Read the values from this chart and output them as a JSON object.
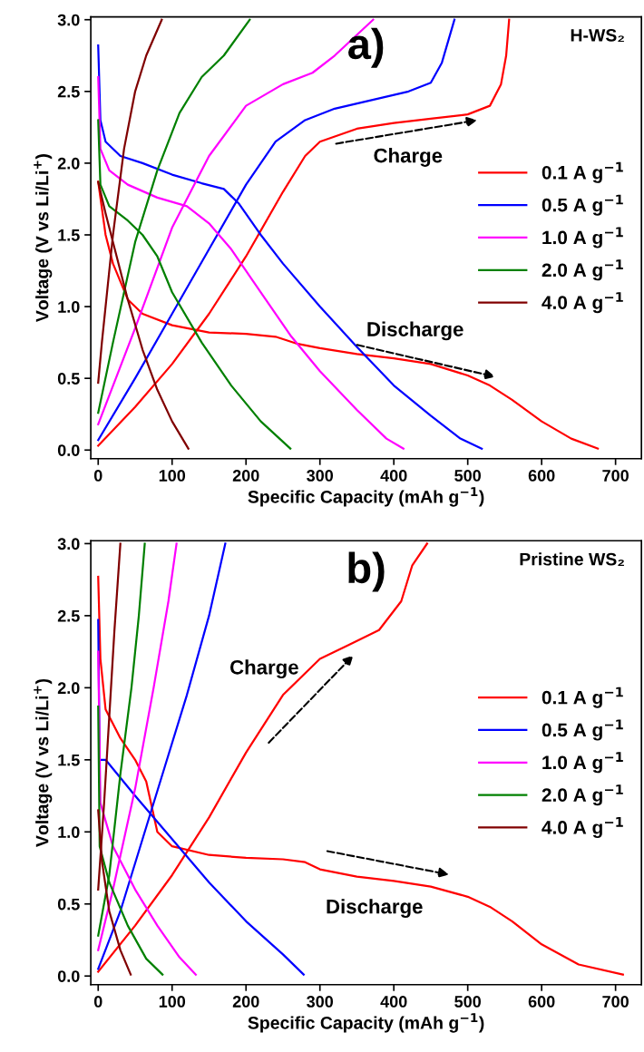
{
  "chart_data": [
    {
      "type": "line",
      "title": "a)",
      "xlabel": "Specific Capacity (mAh g$^{−1}$)",
      "ylabel": "Voltage (V vs Li/Li$^{+}$)",
      "xlim": [
        -10,
        735
      ],
      "ylim": [
        -0.06,
        3.02
      ],
      "xticks": [
        0,
        100,
        200,
        300,
        400,
        500,
        600,
        700
      ],
      "yticks": [
        {
          "value": 0,
          "label": "0.0"
        },
        {
          "value": 0.5,
          "label": "0.5"
        },
        {
          "value": 1,
          "label": "1.0"
        },
        {
          "value": 1.5,
          "label": "1.5"
        },
        {
          "value": 2,
          "label": "2.0"
        },
        {
          "value": 2.5,
          "label": "2.5"
        },
        {
          "value": 3,
          "label": "3.0"
        }
      ],
      "legend": "right",
      "grid": false,
      "marker": "none",
      "line_style": "solid",
      "annotations": [
        "H-WS₂",
        "Charge",
        "Discharge"
      ],
      "series": [
        {
          "name": "0.1 A g$^{−1}$",
          "color": "#ff0000",
          "x": [
            0,
            10,
            20,
            40,
            60,
            100,
            150,
            200,
            240,
            270,
            300,
            350,
            400,
            450,
            500,
            530,
            560,
            600,
            640,
            676
          ],
          "values": [
            1.87,
            1.5,
            1.3,
            1.05,
            0.95,
            0.87,
            0.82,
            0.81,
            0.79,
            0.74,
            0.71,
            0.67,
            0.64,
            0.6,
            0.52,
            0.45,
            0.35,
            0.2,
            0.08,
            0.01
          ]
        },
        {
          "color": "#ff0000",
          "x": [
            0,
            50,
            100,
            150,
            200,
            250,
            280,
            300,
            350,
            400,
            450,
            500,
            530,
            545,
            552,
            556
          ],
          "values": [
            0.03,
            0.3,
            0.6,
            0.95,
            1.35,
            1.8,
            2.05,
            2.15,
            2.24,
            2.28,
            2.31,
            2.34,
            2.4,
            2.55,
            2.75,
            3.0
          ]
        },
        {
          "name": "0.5 A g$^{−1}$",
          "color": "#0000ff",
          "x": [
            0,
            3,
            10,
            30,
            60,
            100,
            140,
            170,
            190,
            220,
            250,
            300,
            350,
            400,
            450,
            490,
            519
          ],
          "values": [
            2.82,
            2.3,
            2.15,
            2.05,
            2.0,
            1.92,
            1.86,
            1.82,
            1.72,
            1.5,
            1.3,
            1.0,
            0.72,
            0.45,
            0.24,
            0.08,
            0.01
          ]
        },
        {
          "color": "#0000ff",
          "x": [
            0,
            50,
            100,
            150,
            200,
            240,
            280,
            320,
            370,
            420,
            450,
            465,
            482
          ],
          "values": [
            0.07,
            0.5,
            0.95,
            1.4,
            1.85,
            2.15,
            2.3,
            2.38,
            2.44,
            2.5,
            2.56,
            2.7,
            3.0
          ]
        },
        {
          "name": "1.0 A g$^{−1}$",
          "color": "#ff00ff",
          "x": [
            0,
            3,
            15,
            40,
            80,
            120,
            150,
            180,
            220,
            260,
            300,
            350,
            390,
            413
          ],
          "values": [
            2.6,
            2.1,
            1.95,
            1.85,
            1.76,
            1.7,
            1.58,
            1.4,
            1.1,
            0.8,
            0.55,
            0.28,
            0.08,
            0.01
          ]
        },
        {
          "color": "#ff00ff",
          "x": [
            0,
            50,
            100,
            150,
            200,
            250,
            290,
            320,
            372
          ],
          "values": [
            0.18,
            0.85,
            1.55,
            2.05,
            2.4,
            2.55,
            2.63,
            2.75,
            3.0
          ]
        },
        {
          "name": "2.0 A g$^{−1}$",
          "color": "#008000",
          "x": [
            0,
            3,
            15,
            40,
            60,
            80,
            100,
            140,
            180,
            220,
            260
          ],
          "values": [
            2.3,
            1.85,
            1.7,
            1.6,
            1.5,
            1.35,
            1.1,
            0.75,
            0.45,
            0.2,
            0.01
          ]
        },
        {
          "color": "#008000",
          "x": [
            0,
            20,
            50,
            80,
            110,
            140,
            170,
            205
          ],
          "values": [
            0.26,
            0.75,
            1.45,
            1.95,
            2.35,
            2.6,
            2.75,
            3.0
          ]
        },
        {
          "name": "4.0 A g$^{−1}$",
          "color": "#800000",
          "x": [
            0,
            10,
            20,
            40,
            60,
            80,
            100,
            122
          ],
          "values": [
            1.87,
            1.65,
            1.45,
            1.05,
            0.7,
            0.42,
            0.2,
            0.01
          ]
        },
        {
          "color": "#800000",
          "x": [
            0,
            5,
            20,
            35,
            50,
            65,
            86
          ],
          "values": [
            0.47,
            0.75,
            1.5,
            2.1,
            2.5,
            2.75,
            3.0
          ]
        }
      ]
    },
    {
      "type": "line",
      "title": "b)",
      "xlabel": "Specific Capacity (mAh g$^{−1}$)",
      "ylabel": "Voltage (V vs Li/Li$^{+}$)",
      "xlim": [
        -10,
        735
      ],
      "ylim": [
        -0.06,
        3.02
      ],
      "xticks": [
        0,
        100,
        200,
        300,
        400,
        500,
        600,
        700
      ],
      "yticks": [
        {
          "value": 0,
          "label": "0.0"
        },
        {
          "value": 0.5,
          "label": "0.5"
        },
        {
          "value": 1,
          "label": "1.0"
        },
        {
          "value": 1.5,
          "label": "1.5"
        },
        {
          "value": 2,
          "label": "2.0"
        },
        {
          "value": 2.5,
          "label": "2.5"
        },
        {
          "value": 3,
          "label": "3.0"
        }
      ],
      "legend": "right",
      "grid": false,
      "marker": "none",
      "line_style": "solid",
      "annotations": [
        "Pristine WS₂",
        "Charge",
        "Discharge"
      ],
      "series": [
        {
          "name": "0.1 A g$^{−1}$",
          "color": "#ff0000",
          "x": [
            0,
            3,
            10,
            30,
            50,
            65,
            80,
            100,
            150,
            200,
            250,
            280,
            300,
            350,
            400,
            450,
            500,
            530,
            560,
            600,
            650,
            710
          ],
          "values": [
            2.77,
            2.2,
            1.85,
            1.65,
            1.5,
            1.35,
            1.0,
            0.9,
            0.84,
            0.82,
            0.81,
            0.79,
            0.74,
            0.69,
            0.66,
            0.62,
            0.55,
            0.48,
            0.38,
            0.22,
            0.08,
            0.01
          ]
        },
        {
          "color": "#ff0000",
          "x": [
            0,
            50,
            100,
            150,
            200,
            250,
            300,
            340,
            380,
            410,
            425,
            445
          ],
          "values": [
            0.03,
            0.35,
            0.7,
            1.1,
            1.55,
            1.95,
            2.2,
            2.3,
            2.4,
            2.6,
            2.85,
            3.0
          ]
        },
        {
          "name": "0.5 A g$^{−1}$",
          "color": "#0000ff",
          "x": [
            0,
            2,
            10,
            50,
            100,
            150,
            200,
            250,
            278
          ],
          "values": [
            2.47,
            1.5,
            1.5,
            1.25,
            0.95,
            0.65,
            0.38,
            0.15,
            0.01
          ]
        },
        {
          "color": "#0000ff",
          "x": [
            0,
            30,
            60,
            90,
            120,
            150,
            172
          ],
          "values": [
            0.05,
            0.45,
            0.95,
            1.45,
            1.95,
            2.5,
            3.0
          ]
        },
        {
          "name": "1.0 A g$^{−1}$",
          "color": "#ff00ff",
          "x": [
            0,
            3,
            20,
            50,
            80,
            110,
            132
          ],
          "values": [
            2.25,
            1.2,
            0.9,
            0.6,
            0.35,
            0.13,
            0.01
          ]
        },
        {
          "color": "#ff00ff",
          "x": [
            0,
            20,
            50,
            75,
            95,
            106
          ],
          "values": [
            0.18,
            0.6,
            1.3,
            2.0,
            2.6,
            3.0
          ]
        },
        {
          "name": "2.0 A g$^{−1}$",
          "color": "#008000",
          "x": [
            0,
            2,
            15,
            40,
            65,
            87
          ],
          "values": [
            1.87,
            0.9,
            0.65,
            0.35,
            0.12,
            0.01
          ]
        },
        {
          "color": "#008000",
          "x": [
            0,
            15,
            30,
            45,
            55,
            63
          ],
          "values": [
            0.28,
            0.7,
            1.4,
            2.0,
            2.5,
            3.0
          ]
        },
        {
          "name": "4.0 A g$^{−1}$",
          "color": "#800000",
          "x": [
            0,
            5,
            15,
            30,
            44
          ],
          "values": [
            1.15,
            0.8,
            0.45,
            0.18,
            0.01
          ]
        },
        {
          "color": "#800000",
          "x": [
            0,
            8,
            15,
            22,
            30
          ],
          "values": [
            0.6,
            1.2,
            1.8,
            2.4,
            3.0
          ]
        }
      ]
    }
  ]
}
